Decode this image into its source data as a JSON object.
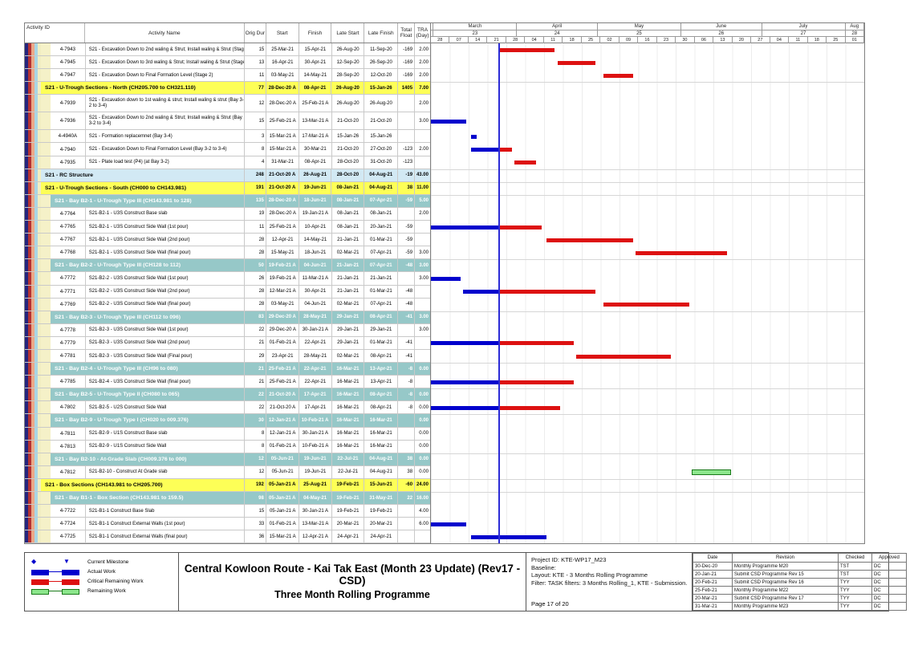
{
  "header": {
    "id": "Activity ID",
    "name": "Activity Name",
    "od": "Orig Dur",
    "start": "Start",
    "finish": "Finish",
    "late_start": "Late Start",
    "late_finish": "Late Finish",
    "tf_1": "Total",
    "tf_2": "Float",
    "tra_1": "TRA",
    "tra_2": "(Day)"
  },
  "timeline": {
    "domain": {
      "start": "2021-02-28",
      "end": "2021-08-08"
    },
    "data_date": "2021-03-25",
    "months": [
      {
        "label": "",
        "num": "",
        "s": "2021-02-28",
        "e": "2021-03-01"
      },
      {
        "label": "March",
        "num": "23",
        "s": "2021-03-01",
        "e": "2021-04-01"
      },
      {
        "label": "April",
        "num": "24",
        "s": "2021-04-01",
        "e": "2021-05-01"
      },
      {
        "label": "May",
        "num": "25",
        "s": "2021-05-01",
        "e": "2021-06-01"
      },
      {
        "label": "June",
        "num": "26",
        "s": "2021-06-01",
        "e": "2021-07-01"
      },
      {
        "label": "July",
        "num": "27",
        "s": "2021-07-01",
        "e": "2021-08-01"
      },
      {
        "label": "Aug",
        "num": "28",
        "s": "2021-08-01",
        "e": "2021-08-08"
      }
    ],
    "weeks": [
      "28",
      "07",
      "14",
      "21",
      "28",
      "04",
      "11",
      "18",
      "25",
      "02",
      "09",
      "16",
      "23",
      "30",
      "06",
      "13",
      "20",
      "27",
      "04",
      "11",
      "18",
      "25",
      "01"
    ]
  },
  "rows": [
    {
      "t": "a",
      "id": "4-7943",
      "name": "S21 - Excavation Down to 2nd waling & Strut; Install waling & Strut (Stage 2)",
      "od": "15",
      "st": "25-Mar-21",
      "fn": "15-Apr-21",
      "ls": "26-Aug-20",
      "lf": "11-Sep-20",
      "tf": "-169",
      "tra": "2.00",
      "bars": [
        [
          "r",
          "2021-03-25",
          "2021-04-15"
        ]
      ]
    },
    {
      "t": "a",
      "id": "4-7945",
      "name": "S21 - Excavation Down to 3rd waling & Strut; Install waling & Strut (Stage 2)",
      "od": "13",
      "st": "16-Apr-21",
      "fn": "30-Apr-21",
      "ls": "12-Sep-20",
      "lf": "26-Sep-20",
      "tf": "-169",
      "tra": "2.00",
      "bars": [
        [
          "r",
          "2021-04-16",
          "2021-04-30"
        ]
      ]
    },
    {
      "t": "a",
      "id": "4-7947",
      "name": "S21 - Excavation Down to Final Formation Level (Stage 2)",
      "od": "11",
      "st": "03-May-21",
      "fn": "14-May-21",
      "ls": "28-Sep-20",
      "lf": "12-Oct-20",
      "tf": "-169",
      "tra": "2.00",
      "bars": [
        [
          "r",
          "2021-05-03",
          "2021-05-14"
        ]
      ]
    },
    {
      "t": "y",
      "id": "",
      "name": "S21 - U-Trough Sections - North (CH205.700 to CH321.110)",
      "od": "77",
      "st": "28-Dec-20 A",
      "fn": "08-Apr-21",
      "ls": "26-Aug-20",
      "lf": "15-Jan-26",
      "tf": "1405",
      "tra": "7.00",
      "bars": []
    },
    {
      "t": "a",
      "h": 22,
      "id": "4-7939",
      "name": "S21 - Excavation down to 1st waling & strut; Install waling & strut (Bay 3-2 to 3-4)",
      "od": "12",
      "st": "28-Dec-20 A",
      "fn": "25-Feb-21 A",
      "ls": "26-Aug-20",
      "lf": "26-Aug-20",
      "tf": "",
      "tra": "2.00",
      "bars": []
    },
    {
      "t": "a",
      "h": 22,
      "id": "4-7936",
      "name": "S21 - Excavation Down to 2nd waling & Strut; Install waling & Strut (Bay 3-2 to 3-4)",
      "od": "15",
      "st": "25-Feb-21 A",
      "fn": "13-Mar-21 A",
      "ls": "21-Oct-20",
      "lf": "21-Oct-20",
      "tf": "",
      "tra": "3.00",
      "bars": [
        [
          "b",
          "2021-02-28",
          "2021-03-13"
        ]
      ]
    },
    {
      "t": "a",
      "id": "4-4940A",
      "name": "S21 - Formation replacemnet (Bay 3-4)",
      "od": "3",
      "st": "15-Mar-21 A",
      "fn": "17-Mar-21 A",
      "ls": "15-Jan-26",
      "lf": "15-Jan-26",
      "tf": "",
      "tra": "",
      "bars": [
        [
          "b",
          "2021-03-15",
          "2021-03-17"
        ]
      ]
    },
    {
      "t": "a",
      "id": "4-7940",
      "name": "S21 - Excavation Down to Final Formation Level (Bay 3-2 to 3-4)",
      "od": "8",
      "st": "15-Mar-21 A",
      "fn": "30-Mar-21",
      "ls": "21-Oct-20",
      "lf": "27-Oct-20",
      "tf": "-123",
      "tra": "2.00",
      "bars": [
        [
          "b",
          "2021-03-15",
          "2021-03-25"
        ],
        [
          "r",
          "2021-03-25",
          "2021-03-30"
        ]
      ]
    },
    {
      "t": "a",
      "id": "4-7935",
      "name": "S21 - Plate load test (P4) (at Bay 3-2)",
      "od": "4",
      "st": "31-Mar-21",
      "fn": "08-Apr-21",
      "ls": "28-Oct-20",
      "lf": "31-Oct-20",
      "tf": "-123",
      "tra": "",
      "bars": [
        [
          "r",
          "2021-03-31",
          "2021-04-08"
        ]
      ]
    },
    {
      "t": "b",
      "id": "",
      "name": "S21 - RC Structure",
      "od": "248",
      "st": "21-Oct-20 A",
      "fn": "26-Aug-21",
      "ls": "28-Oct-20",
      "lf": "04-Aug-21",
      "tf": "-19",
      "tra": "43.00",
      "bars": []
    },
    {
      "t": "y",
      "id": "",
      "name": "S21 - U-Trough Sections - South (CH000 to CH143.981)",
      "od": "191",
      "st": "21-Oct-20 A",
      "fn": "19-Jun-21",
      "ls": "08-Jan-21",
      "lf": "04-Aug-21",
      "tf": "38",
      "tra": "11.00",
      "bars": []
    },
    {
      "t": "t",
      "id": "",
      "name": "S21 - Bay B2-1 - U-Trough Type III (CH143.981 to 128)",
      "od": "135",
      "st": "28-Dec-20 A",
      "fn": "18-Jun-21",
      "ls": "08-Jan-21",
      "lf": "07-Apr-21",
      "tf": "-59",
      "tra": "5.00",
      "bars": []
    },
    {
      "t": "a",
      "id": "4-7764",
      "name": "S21-B2-1 - U3S Construct Base slab",
      "od": "19",
      "st": "28-Dec-20 A",
      "fn": "19-Jan-21 A",
      "ls": "08-Jan-21",
      "lf": "08-Jan-21",
      "tf": "",
      "tra": "2.00",
      "bars": []
    },
    {
      "t": "a",
      "id": "4-7765",
      "name": "S21-B2-1 - U3S Construct Side Wall (1st pour)",
      "od": "11",
      "st": "25-Feb-21 A",
      "fn": "10-Apr-21",
      "ls": "08-Jan-21",
      "lf": "20-Jan-21",
      "tf": "-59",
      "tra": "",
      "bars": [
        [
          "b",
          "2021-02-28",
          "2021-03-25"
        ],
        [
          "r",
          "2021-03-25",
          "2021-04-10"
        ]
      ]
    },
    {
      "t": "a",
      "id": "4-7767",
      "name": "S21-B2-1 - U3S Construct Side Wall (2nd pour)",
      "od": "28",
      "st": "12-Apr-21",
      "fn": "14-May-21",
      "ls": "21-Jan-21",
      "lf": "01-Mar-21",
      "tf": "-59",
      "tra": "",
      "bars": [
        [
          "r",
          "2021-04-12",
          "2021-05-14"
        ]
      ]
    },
    {
      "t": "a",
      "id": "4-7768",
      "name": "S21-B2-1 - U3S Construct Side Wall (final pour)",
      "od": "28",
      "st": "15-May-21",
      "fn": "18-Jun-21",
      "ls": "02-Mar-21",
      "lf": "07-Apr-21",
      "tf": "-59",
      "tra": "3.00",
      "bars": [
        [
          "r",
          "2021-05-15",
          "2021-06-18"
        ]
      ]
    },
    {
      "t": "t",
      "id": "",
      "name": "S21 - Bay B2-2 - U-Trough  Type III (CH128 to 112)",
      "od": "50",
      "st": "19-Feb-21 A",
      "fn": "04-Jun-21",
      "ls": "21-Jan-21",
      "lf": "07-Apr-21",
      "tf": "-48",
      "tra": "3.00",
      "bars": []
    },
    {
      "t": "a",
      "id": "4-7772",
      "name": "S21-B2-2 - U3S Construct Side Wall (1st pour)",
      "od": "26",
      "st": "19-Feb-21 A",
      "fn": "11-Mar-21 A",
      "ls": "21-Jan-21",
      "lf": "21-Jan-21",
      "tf": "",
      "tra": "3.00",
      "bars": [
        [
          "b",
          "2021-02-28",
          "2021-03-11"
        ]
      ]
    },
    {
      "t": "a",
      "id": "4-7771",
      "name": "S21-B2-2 - U3S Construct Side Wall (2nd pour)",
      "od": "28",
      "st": "12-Mar-21 A",
      "fn": "30-Apr-21",
      "ls": "21-Jan-21",
      "lf": "01-Mar-21",
      "tf": "-48",
      "tra": "",
      "bars": [
        [
          "b",
          "2021-03-12",
          "2021-03-25"
        ],
        [
          "r",
          "2021-03-25",
          "2021-04-30"
        ]
      ]
    },
    {
      "t": "a",
      "id": "4-7769",
      "name": "S21-B2-2 - U3S Construct Side Wall (final pour)",
      "od": "28",
      "st": "03-May-21",
      "fn": "04-Jun-21",
      "ls": "02-Mar-21",
      "lf": "07-Apr-21",
      "tf": "-48",
      "tra": "",
      "bars": [
        [
          "r",
          "2021-05-03",
          "2021-06-04"
        ]
      ]
    },
    {
      "t": "t",
      "id": "",
      "name": "S21 - Bay B2-3 - U-Trough  Type III (CH112 to 096)",
      "od": "83",
      "st": "29-Dec-20 A",
      "fn": "28-May-21",
      "ls": "29-Jan-21",
      "lf": "08-Apr-21",
      "tf": "-41",
      "tra": "3.00",
      "bars": []
    },
    {
      "t": "a",
      "id": "4-7778",
      "name": "S21-B2-3 - U3S Construct Side Wall (1st pour)",
      "od": "22",
      "st": "29-Dec-20 A",
      "fn": "30-Jan-21 A",
      "ls": "29-Jan-21",
      "lf": "29-Jan-21",
      "tf": "",
      "tra": "3.00",
      "bars": []
    },
    {
      "t": "a",
      "id": "4-7779",
      "name": "S21-B2-3 - U3S Construct Side Wall (2nd pour)",
      "od": "21",
      "st": "01-Feb-21 A",
      "fn": "22-Apr-21",
      "ls": "29-Jan-21",
      "lf": "01-Mar-21",
      "tf": "-41",
      "tra": "",
      "bars": [
        [
          "b",
          "2021-02-28",
          "2021-03-25"
        ],
        [
          "r",
          "2021-03-25",
          "2021-04-22"
        ]
      ]
    },
    {
      "t": "a",
      "id": "4-7781",
      "name": "S21-B2-3 - U3S Construct Side Wall (Final pour)",
      "od": "29",
      "st": "23-Apr-21",
      "fn": "28-May-21",
      "ls": "02-Mar-21",
      "lf": "08-Apr-21",
      "tf": "-41",
      "tra": "",
      "bars": [
        [
          "r",
          "2021-04-23",
          "2021-05-28"
        ]
      ]
    },
    {
      "t": "t",
      "id": "",
      "name": "S21 - Bay B2-4 - U-Trough  Type III (CH96 to 080)",
      "od": "21",
      "st": "25-Feb-21 A",
      "fn": "22-Apr-21",
      "ls": "16-Mar-21",
      "lf": "13-Apr-21",
      "tf": "-8",
      "tra": "0.00",
      "bars": []
    },
    {
      "t": "a",
      "id": "4-7785",
      "name": "S21-B2-4 - U3S Construct Side Wall (final pour)",
      "od": "21",
      "st": "25-Feb-21 A",
      "fn": "22-Apr-21",
      "ls": "16-Mar-21",
      "lf": "13-Apr-21",
      "tf": "-8",
      "tra": "",
      "bars": [
        [
          "b",
          "2021-02-28",
          "2021-03-25"
        ],
        [
          "r",
          "2021-03-25",
          "2021-04-22"
        ]
      ]
    },
    {
      "t": "t",
      "id": "",
      "name": "S21 - Bay B2-5 - U-Trough  Type II (CH080 to 065)",
      "od": "22",
      "st": "21-Oct-20 A",
      "fn": "17-Apr-21",
      "ls": "16-Mar-21",
      "lf": "08-Apr-21",
      "tf": "-8",
      "tra": "0.00",
      "bars": []
    },
    {
      "t": "a",
      "id": "4-7802",
      "name": "S21-B2-5 - U2S Construct Side Wall",
      "od": "22",
      "st": "21-Oct-20 A",
      "fn": "17-Apr-21",
      "ls": "16-Mar-21",
      "lf": "08-Apr-21",
      "tf": "-8",
      "tra": "0.00",
      "bars": [
        [
          "b",
          "2021-02-28",
          "2021-03-25"
        ],
        [
          "r",
          "2021-03-25",
          "2021-04-17"
        ]
      ]
    },
    {
      "t": "t",
      "id": "",
      "name": "S21 - Bay B2-9 - U-Trough  Type I (CH020 to 009.376)",
      "od": "30",
      "st": "12-Jan-21 A",
      "fn": "10-Feb-21 A",
      "ls": "16-Mar-21",
      "lf": "16-Mar-21",
      "tf": "",
      "tra": "0.00",
      "bars": []
    },
    {
      "t": "a",
      "id": "4-7811",
      "name": "S21-B2-9 - U1S Construct Base slab",
      "od": "8",
      "st": "12-Jan-21 A",
      "fn": "30-Jan-21 A",
      "ls": "16-Mar-21",
      "lf": "16-Mar-21",
      "tf": "",
      "tra": "0.00",
      "bars": []
    },
    {
      "t": "a",
      "id": "4-7813",
      "name": "S21-B2-9 - U1S Construct Side Wall",
      "od": "8",
      "st": "01-Feb-21 A",
      "fn": "10-Feb-21 A",
      "ls": "16-Mar-21",
      "lf": "16-Mar-21",
      "tf": "",
      "tra": "0.00",
      "bars": []
    },
    {
      "t": "t",
      "id": "",
      "name": "S21 -  Bay B2-10 - At-Grade Slab (CH009.376 to 000)",
      "od": "12",
      "st": "05-Jun-21",
      "fn": "19-Jun-21",
      "ls": "22-Jul-21",
      "lf": "04-Aug-21",
      "tf": "38",
      "tra": "0.00",
      "bars": []
    },
    {
      "t": "a",
      "id": "4-7812",
      "name": "S21-B2-10 - Construct At Grade slab",
      "od": "12",
      "st": "05-Jun-21",
      "fn": "19-Jun-21",
      "ls": "22-Jul-21",
      "lf": "04-Aug-21",
      "tf": "38",
      "tra": "0.00",
      "bars": [
        [
          "g",
          "2021-06-05",
          "2021-06-19"
        ]
      ]
    },
    {
      "t": "y",
      "id": "",
      "name": "S21 - Box Sections (CH143.981 to CH205.700)",
      "od": "192",
      "st": "05-Jan-21 A",
      "fn": "25-Aug-21",
      "ls": "19-Feb-21",
      "lf": "15-Jun-21",
      "tf": "-60",
      "tra": "24.00",
      "bars": []
    },
    {
      "t": "t",
      "id": "",
      "name": "S21 - Bay B1-1 - Box Section (CH143.981 to 159.5)",
      "od": "98",
      "st": "05-Jan-21 A",
      "fn": "04-May-21",
      "ls": "19-Feb-21",
      "lf": "31-May-21",
      "tf": "22",
      "tra": "16.00",
      "bars": []
    },
    {
      "t": "a",
      "id": "4-7722",
      "name": "S21-B1-1 Construct Base Slab",
      "od": "15",
      "st": "05-Jan-21 A",
      "fn": "30-Jan-21 A",
      "ls": "19-Feb-21",
      "lf": "19-Feb-21",
      "tf": "",
      "tra": "4.00",
      "bars": []
    },
    {
      "t": "a",
      "id": "4-7724",
      "name": "S21-B1-1 Construct External Walls (1st pour)",
      "od": "33",
      "st": "01-Feb-21 A",
      "fn": "13-Mar-21 A",
      "ls": "20-Mar-21",
      "lf": "20-Mar-21",
      "tf": "",
      "tra": "6.00",
      "bars": [
        [
          "b",
          "2021-02-28",
          "2021-03-13"
        ]
      ]
    },
    {
      "t": "a",
      "id": "4-7725",
      "name": "S21-B1-1 Construct External Walls (final pour)",
      "od": "36",
      "st": "15-Mar-21 A",
      "fn": "12-Apr-21 A",
      "ls": "24-Apr-21",
      "lf": "24-Apr-21",
      "tf": "",
      "tra": "",
      "bars": [
        [
          "b",
          "2021-03-15",
          "2021-04-12"
        ]
      ]
    }
  ],
  "legend": [
    {
      "type": "milestone",
      "label": "Current Milestone"
    },
    {
      "type": "actual",
      "label": "Actual Work"
    },
    {
      "type": "critical",
      "label": "Critical Remaining Work"
    },
    {
      "type": "remaining",
      "label": "Remaining Work"
    }
  ],
  "title": {
    "line1": "Central Kowloon Route - Kai Tak East (Month 23 Update) (Rev17 - CSD)",
    "line2": "Three Month Rolling Programme"
  },
  "project_info": {
    "lines": [
      "Project ID: KTE-WP17_M23",
      "Baseline:",
      "Layout: KTE - 3 Months Rolling Programme",
      "Filter: TASK filters: 3 Months Rolling_1, KTE - Submission."
    ],
    "page": "Page 17 of 20"
  },
  "revision_table": {
    "headers": [
      "Date",
      "Revision",
      "Checked",
      "Approved"
    ],
    "rows": [
      [
        "30-Dec-20",
        "Monthly Programme M20",
        "TST",
        "DC"
      ],
      [
        "20-Jan-21",
        "Submit CSD Programme Rev 15",
        "TST",
        "DC"
      ],
      [
        "20-Feb-21",
        "Submit CSD Programme Rev 16",
        "TYY",
        "DC"
      ],
      [
        "25-Feb-21",
        "Monthly Programme M22",
        "TYY",
        "DC"
      ],
      [
        "20-Mar-21",
        "Submit CSD Programme Rev 17",
        "TYY",
        "DC"
      ],
      [
        "31-Mar-21",
        "Monthly Programme M23",
        "TYY",
        "DC"
      ]
    ]
  },
  "colors": {
    "actual_bar": "#0000cd",
    "critical_bar": "#dd1111",
    "remaining_bar": "#8ce68c",
    "remaining_border": "#1a7a1a",
    "data_date_line": "#2b2bd6",
    "summary_yellow": "#fdff57",
    "summary_blue": "#d2e9f4",
    "band_teal": "#96c8c8",
    "indent_cream": "#f5f1c8",
    "stripe_colors": [
      "#26267e",
      "#b43333",
      "#eba888",
      "#a9d6e5",
      "#f2eec2"
    ]
  }
}
